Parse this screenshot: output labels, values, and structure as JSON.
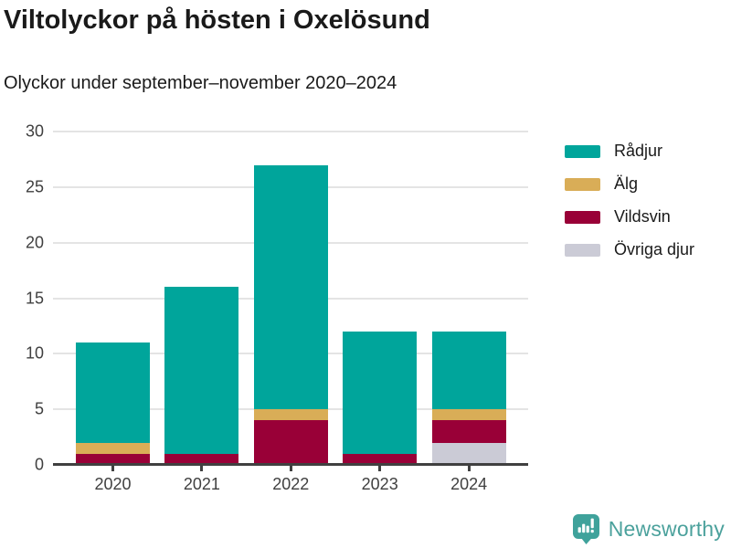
{
  "chart_data": {
    "type": "bar",
    "stacked": true,
    "title": "Viltolyckor på hösten i Oxelösund",
    "subtitle": "Olyckor under september–november 2020–2024",
    "categories": [
      "2020",
      "2021",
      "2022",
      "2023",
      "2024"
    ],
    "series": [
      {
        "name": "Rådjur",
        "color": "#00a59b",
        "values": [
          9,
          15,
          22,
          11,
          7
        ]
      },
      {
        "name": "Älg",
        "color": "#d9ad57",
        "values": [
          1,
          0,
          1,
          0,
          1
        ]
      },
      {
        "name": "Vildsvin",
        "color": "#990037",
        "values": [
          1,
          1,
          4,
          1,
          2
        ]
      },
      {
        "name": "Övriga djur",
        "color": "#cbcbd6",
        "values": [
          0,
          0,
          0,
          0,
          2
        ]
      }
    ],
    "totals": [
      11,
      16,
      27,
      12,
      12
    ],
    "stack_order_bottom_to_top": [
      "Övriga djur",
      "Vildsvin",
      "Älg",
      "Rådjur"
    ],
    "xlabel": "",
    "ylabel": "",
    "ylim": [
      0,
      30
    ],
    "y_ticks": [
      0,
      5,
      10,
      15,
      20,
      25,
      30
    ],
    "grid": "horizontal",
    "legend_position": "right"
  },
  "colors": {
    "axis": "#404040",
    "grid": "#e4e4e4",
    "text": "#1a1a1a",
    "brand_teal": "#4ba19c",
    "logo_teal": "#3fa29b"
  },
  "footer": {
    "brand_label": "Newsworthy"
  }
}
